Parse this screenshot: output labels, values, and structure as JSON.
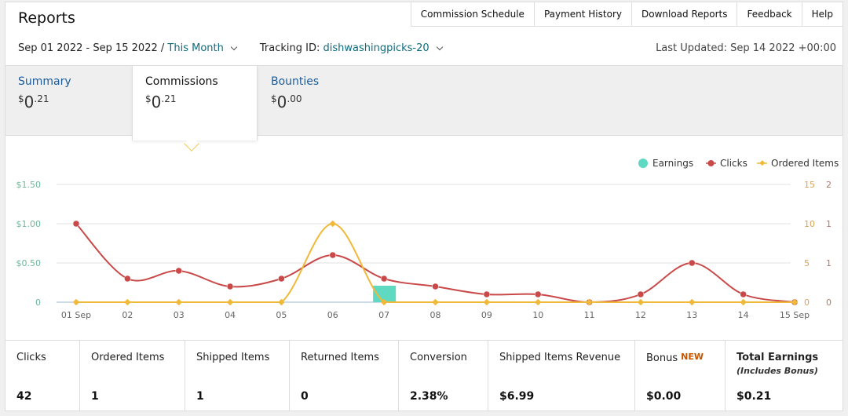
{
  "header": {
    "title": "Reports",
    "nav": [
      "Commission Schedule",
      "Payment History",
      "Download Reports",
      "Feedback",
      "Help"
    ]
  },
  "filters": {
    "date_range": "Sep 01 2022 - Sep 15 2022",
    "separator": "/",
    "period": "This Month",
    "tracking_label": "Tracking ID:",
    "tracking_id": "dishwashingpicks-20",
    "last_updated": "Last Updated: Sep 14 2022 +00:00"
  },
  "tabs": [
    {
      "label": "Summary",
      "currency": "$",
      "whole": "0",
      "fraction": ".21"
    },
    {
      "label": "Commissions",
      "currency": "$",
      "whole": "0",
      "fraction": ".21",
      "active": true
    },
    {
      "label": "Bounties",
      "currency": "$",
      "whole": "0",
      "fraction": ".00"
    }
  ],
  "chart_data": {
    "type": "line",
    "categories": [
      "01 Sep",
      "02",
      "03",
      "04",
      "05",
      "06",
      "07",
      "08",
      "09",
      "10",
      "11",
      "12",
      "13",
      "14",
      "15 Sep"
    ],
    "legend": {
      "placement": "top-right",
      "items": [
        "Earnings",
        "Clicks",
        "Ordered Items"
      ]
    },
    "y_left_ticks": [
      "$1.50",
      "$1.00",
      "$0.50",
      "0"
    ],
    "y_right_ticks": [
      "15",
      "10",
      "5",
      "0"
    ],
    "y_right2_ticks": [
      "2",
      "1",
      "1",
      "0"
    ],
    "grid": true,
    "series": [
      {
        "name": "Earnings",
        "kind": "bar",
        "axis": "left",
        "values": [
          0,
          0,
          0,
          0,
          0,
          0,
          0.21,
          0,
          0,
          0,
          0,
          0,
          0,
          0,
          0
        ],
        "color": "#5fd9c1"
      },
      {
        "name": "Clicks",
        "kind": "line",
        "axis": "right",
        "values": [
          10,
          3,
          4,
          2,
          3,
          6,
          3,
          2,
          1,
          1,
          0,
          1,
          5,
          1,
          0
        ],
        "color": "#c94848"
      },
      {
        "name": "Ordered Items",
        "kind": "line",
        "axis": "right",
        "values": [
          0,
          0,
          0,
          0,
          0,
          10,
          0,
          0,
          0,
          0,
          0,
          0,
          0,
          0,
          0
        ],
        "color": "#f0b93a"
      }
    ],
    "ylim_left": [
      0,
      1.5
    ],
    "ylim_right": [
      0,
      15
    ]
  },
  "stats": [
    {
      "label": "Clicks",
      "value": "42"
    },
    {
      "label": "Ordered Items",
      "value": "1"
    },
    {
      "label": "Shipped Items",
      "value": "1"
    },
    {
      "label": "Returned Items",
      "value": "0"
    },
    {
      "label": "Conversion",
      "value": "2.38%"
    },
    {
      "label": "Shipped Items Revenue",
      "value": "$6.99"
    },
    {
      "label": "Bonus",
      "badge": "NEW",
      "value": "$0.00"
    },
    {
      "label": "Total Earnings",
      "sub": "(Includes Bonus)",
      "value": "$0.21"
    }
  ]
}
